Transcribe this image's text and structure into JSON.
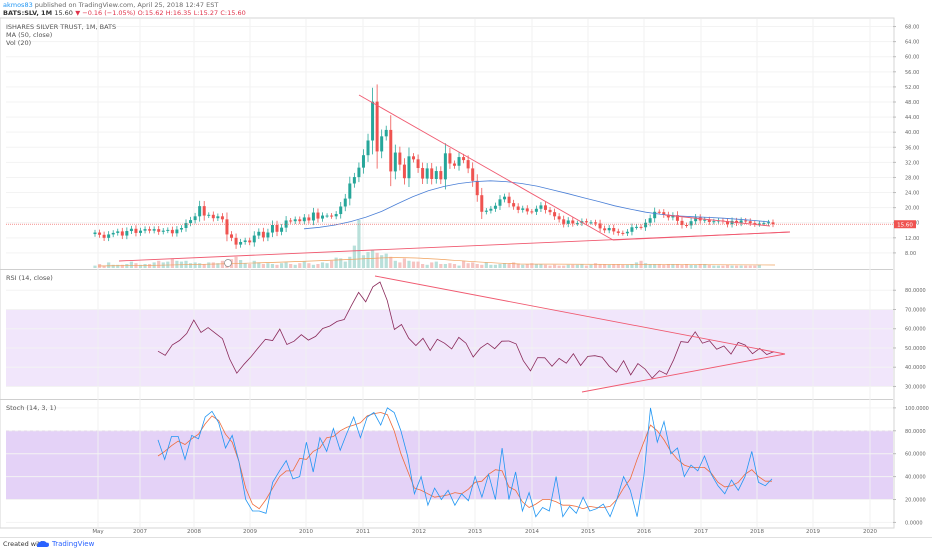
{
  "header": {
    "username": "akmos83",
    "published_text": "published on TradingView.com, April 25, 2018 12:47 EST"
  },
  "ohlc_line": {
    "symbol": "BATS:SLV, 1M",
    "price": "15.60",
    "change": "▼ −0.16 (−1.05%)",
    "open": "O:15.62",
    "high": "H:16.35",
    "low": "L:15.27",
    "close": "C:15.60"
  },
  "legends": {
    "title": "ISHARES SILVER TRUST, 1M, BATS",
    "ma": "MA (50, close)",
    "vol": "Vol (20)",
    "rsi": "RSI (14, close)",
    "stoch": "Stoch (14, 3, 1)"
  },
  "price_tag": "15.60",
  "footer": {
    "created_with": "Created with",
    "brand": "TradingView"
  },
  "colors": {
    "up": "#26a69a",
    "down": "#ef5350",
    "ma": "#4a7fd6",
    "rsi": "#8a2a5a",
    "stoch_k": "#2196f3",
    "stoch_d": "#ef6c3c",
    "trendline": "#f05a70",
    "band": "#e9dcfb"
  },
  "chart_data": [
    {
      "type": "candlestick",
      "pane": "price",
      "x_ticks": [
        "May",
        "2007",
        "2008",
        "2009",
        "2010",
        "2011",
        "2012",
        "2013",
        "2014",
        "2015",
        "2016",
        "2017",
        "2018",
        "2019",
        "2020"
      ],
      "y_ticks": [
        "68.00",
        "64.00",
        "60.00",
        "56.00",
        "52.00",
        "48.00",
        "44.00",
        "40.00",
        "36.00",
        "32.00",
        "28.00",
        "24.00",
        "20.00",
        "16.00",
        "12.00",
        "8.00"
      ],
      "ylim": [
        4,
        68
      ],
      "last_price": 15.6,
      "series": [
        {
          "name": "close",
          "values": [
            13.4,
            12.8,
            12.0,
            12.9,
            13.3,
            13.7,
            12.6,
            13.8,
            14.4,
            13.3,
            13.9,
            14.3,
            13.9,
            14.3,
            13.6,
            13.9,
            14.1,
            13.2,
            14.2,
            14.6,
            15.9,
            16.7,
            17.7,
            20.4,
            17.9,
            18.1,
            17.2,
            17.7,
            16.9,
            12.9,
            12.0,
            10.2,
            10.9,
            11.3,
            10.8,
            12.6,
            13.6,
            12.1,
            13.4,
            15.4,
            13.6,
            14.7,
            16.6,
            16.4,
            16.9,
            16.4,
            17.4,
            16.6,
            18.7,
            17.1,
            17.9,
            17.9,
            17.7,
            18.3,
            20.3,
            22.4,
            26.4,
            28.1,
            30.6,
            33.9,
            37.8,
            48.1,
            34.9,
            38.9,
            40.6,
            29.6,
            34.6,
            31.4,
            27.8,
            33.6,
            32.8,
            30.5,
            27.7,
            30.4,
            27.6,
            29.7,
            27.5,
            34.4,
            31.7,
            31.1,
            33.4,
            32.6,
            30.4,
            27.1,
            23.3,
            18.9,
            19.2,
            19.7,
            20.5,
            22.2,
            22.9,
            21.2,
            20.3,
            19.4,
            19.8,
            19.0,
            18.9,
            19.7,
            20.6,
            19.4,
            18.8,
            17.7,
            16.9,
            15.7,
            16.6,
            15.8,
            15.9,
            16.4,
            16.1,
            16.1,
            15.8,
            14.5,
            14.0,
            14.6,
            13.7,
            13.3,
            13.2,
            13.6,
            14.8,
            14.9,
            14.8,
            16.0,
            17.2,
            18.9,
            18.8,
            18.1,
            17.4,
            18.0,
            16.5,
            15.4,
            15.3,
            16.4,
            17.4,
            16.6,
            16.8,
            16.2,
            16.4,
            16.6,
            16.4,
            15.6,
            16.5,
            15.9,
            16.6,
            16.4,
            15.9,
            15.6,
            15.8,
            15.9,
            16.1,
            15.6
          ]
        },
        {
          "name": "MA (50, close)",
          "values": [
            14.4,
            14.8,
            15.4,
            16.3,
            17.5,
            19.0,
            21.0,
            22.9,
            24.5,
            25.6,
            26.4,
            26.9,
            27.1,
            26.9,
            26.4,
            25.7,
            24.7,
            23.7,
            22.6,
            21.6,
            20.5,
            19.6,
            18.8,
            18.2,
            17.8,
            17.6,
            17.4,
            17.2,
            16.9,
            16.6,
            16.2
          ]
        },
        {
          "name": "Vol (20)",
          "values": [
            3,
            5,
            3,
            7,
            4,
            4,
            4,
            5,
            8,
            6,
            4,
            5,
            5,
            7,
            9,
            7,
            8,
            12,
            9,
            8,
            9,
            6,
            7,
            6,
            5,
            7,
            7,
            6,
            9,
            7,
            11,
            14,
            10,
            6,
            5,
            9,
            7,
            5,
            6,
            5,
            4,
            6,
            7,
            5,
            4,
            6,
            8,
            6,
            4,
            5,
            7,
            6,
            9,
            13,
            12,
            8,
            14,
            28,
            60,
            16,
            20,
            22,
            19,
            16,
            18,
            14,
            9,
            7,
            12,
            9,
            8,
            8,
            5,
            4,
            7,
            8,
            5,
            5,
            6,
            5,
            3,
            9,
            6,
            7,
            5,
            4,
            7,
            4,
            4,
            5,
            6,
            5,
            7,
            5,
            4,
            5,
            6,
            5,
            5,
            4,
            3,
            4,
            3,
            3,
            4,
            4,
            4,
            5,
            3,
            4,
            6,
            5,
            5,
            4,
            5,
            5,
            4,
            4,
            5,
            7,
            9,
            6,
            5,
            5,
            5,
            4,
            5,
            5,
            5,
            4,
            5,
            4,
            4,
            5,
            5,
            4,
            3,
            3,
            3,
            4,
            3,
            3,
            3,
            3,
            3,
            3,
            4
          ]
        }
      ]
    },
    {
      "type": "line",
      "pane": "rsi",
      "title": "RSI (14, close)",
      "y_ticks": [
        "80.0000",
        "70.0000",
        "60.0000",
        "50.0000",
        "40.0000",
        "30.0000"
      ],
      "ylim": [
        26,
        88
      ],
      "band": [
        30,
        70
      ],
      "series": [
        {
          "name": "RSI",
          "values": [
            48.3,
            46.2,
            51.6,
            53.9,
            57.5,
            64.5,
            58.1,
            60.6,
            57.7,
            54.8,
            44.3,
            36.9,
            41.5,
            45.5,
            50.1,
            54.5,
            53.9,
            59.8,
            51.8,
            53.5,
            56.9,
            54.1,
            56.0,
            60.1,
            61.4,
            63.8,
            64.8,
            72.0,
            78.9,
            74.0,
            81.8,
            84.3,
            74.7,
            59.6,
            62.2,
            55.1,
            51.3,
            55.0,
            48.7,
            54.5,
            52.5,
            49.5,
            55.5,
            52.5,
            45.3,
            49.9,
            52.5,
            49.6,
            53.5,
            53.6,
            52.1,
            43.4,
            38.1,
            45.0,
            44.9,
            40.5,
            44.6,
            42.1,
            47.0,
            40.9,
            45.6,
            46.0,
            45.2,
            40.5,
            37.4,
            43.4,
            36.0,
            41.9,
            39.0,
            34.3,
            38.2,
            36.3,
            43.9,
            53.3,
            52.9,
            58.4,
            52.5,
            53.8,
            49.3,
            51.0,
            46.8,
            52.9,
            51.5,
            47.0,
            49.8,
            46.6,
            48.1
          ]
        }
      ]
    },
    {
      "type": "line",
      "pane": "stoch",
      "title": "Stoch (14, 3, 1)",
      "y_ticks": [
        "100.0000",
        "80.0000",
        "60.0000",
        "40.0000",
        "20.0000",
        "0.0000"
      ],
      "ylim": [
        0,
        100
      ],
      "band": [
        20,
        80
      ],
      "series": [
        {
          "name": "%K",
          "values": [
            72,
            55,
            75,
            75,
            55,
            76,
            73,
            92,
            97,
            87,
            65,
            76,
            53,
            20,
            10,
            10,
            8,
            35,
            45,
            54,
            38,
            40,
            70,
            44,
            74,
            62,
            82,
            63,
            78,
            92,
            74,
            92,
            96,
            85,
            100,
            96,
            80,
            58,
            25,
            40,
            15,
            30,
            20,
            28,
            15,
            25,
            19,
            40,
            22,
            42,
            20,
            65,
            20,
            44,
            10,
            26,
            5,
            13,
            10,
            40,
            5,
            14,
            8,
            22,
            10,
            12,
            16,
            5,
            20,
            40,
            28,
            5,
            40,
            100,
            70,
            88,
            60,
            65,
            40,
            50,
            45,
            58,
            42,
            32,
            25,
            37,
            28,
            40,
            62,
            35,
            32,
            38
          ]
        },
        {
          "name": "%D",
          "values": [
            58,
            62,
            67,
            71,
            68,
            73,
            77,
            86,
            93,
            89,
            77,
            70,
            53,
            30,
            16,
            12,
            20,
            30,
            40,
            45,
            45,
            56,
            55,
            62,
            65,
            74,
            75,
            80,
            83,
            85,
            87,
            93,
            95,
            96,
            94,
            80,
            60,
            45,
            30,
            28,
            25,
            22,
            23,
            24,
            26,
            25,
            29,
            35,
            36,
            42,
            46,
            45,
            31,
            28,
            18,
            13,
            16,
            20,
            20,
            18,
            15,
            15,
            14,
            12,
            14,
            13,
            13,
            14,
            20,
            30,
            38,
            55,
            70,
            85,
            80,
            72,
            62,
            55,
            50,
            48,
            48,
            48,
            43,
            35,
            31,
            32,
            35,
            42,
            46,
            40,
            36,
            36
          ]
        }
      ]
    }
  ]
}
